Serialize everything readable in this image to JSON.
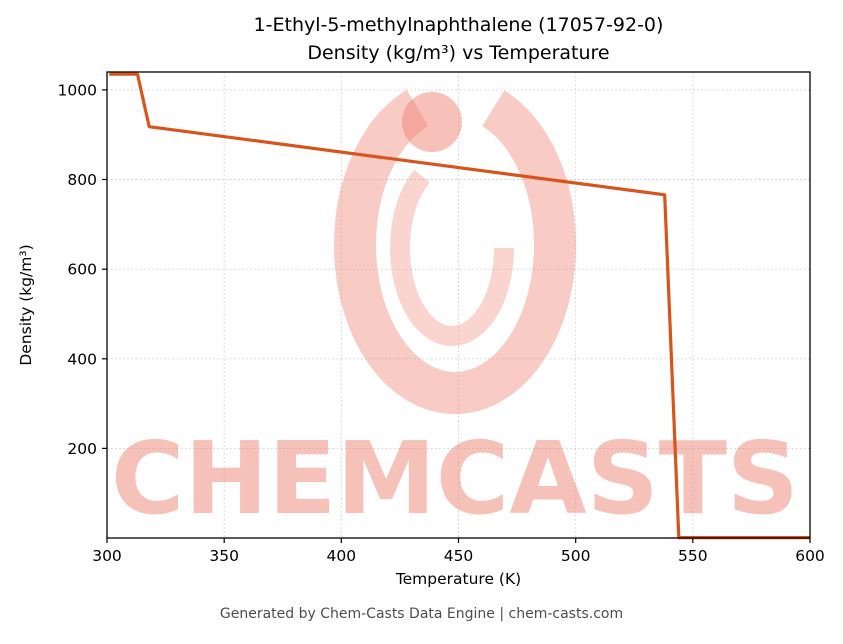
{
  "header": {
    "title_line1": "1-Ethyl-5-methylnaphthalene (17057-92-0)",
    "title_line2": "Density (kg/m³) vs Temperature"
  },
  "footer": {
    "text": "Generated by Chem-Casts Data Engine | chem-casts.com"
  },
  "watermark": {
    "text": "CHEMCASTS",
    "color": "#ef8475"
  },
  "chart_data": {
    "type": "line",
    "title": "1-Ethyl-5-methylnaphthalene (17057-92-0) Density (kg/m³) vs Temperature",
    "xlabel": "Temperature (K)",
    "ylabel": "Density (kg/m³)",
    "xlim": [
      300,
      600
    ],
    "ylim": [
      0,
      1040
    ],
    "xticks": [
      300,
      350,
      400,
      450,
      500,
      550,
      600
    ],
    "yticks": [
      200,
      400,
      600,
      800,
      1000
    ],
    "grid": true,
    "legend_position": "none",
    "line_color": "#d9541c",
    "series": [
      {
        "name": "Density (kg/m³)",
        "points": [
          [
            301,
            1035
          ],
          [
            313,
            1035
          ],
          [
            318,
            918
          ],
          [
            538,
            766
          ],
          [
            544,
            1
          ],
          [
            600,
            1
          ]
        ]
      }
    ]
  }
}
